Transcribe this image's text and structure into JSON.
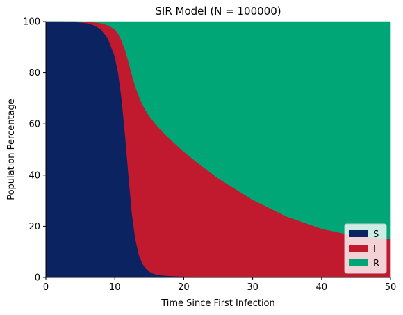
{
  "chart_data": {
    "type": "area",
    "stacked": true,
    "title": "SIR Model (N = 100000)",
    "xlabel": "Time Since First Infection",
    "ylabel": "Population Percentage",
    "xlim": [
      0,
      50
    ],
    "ylim": [
      0,
      100
    ],
    "xticks": [
      0,
      10,
      20,
      30,
      40,
      50
    ],
    "yticks": [
      0,
      20,
      40,
      60,
      80,
      100
    ],
    "grid": false,
    "legend_position": "bottom-right",
    "x": [
      0,
      2,
      4,
      6,
      7,
      8,
      9,
      10,
      10.5,
      11,
      11.5,
      12,
      12.5,
      13,
      13.5,
      14,
      14.5,
      15,
      15.5,
      16,
      17,
      18,
      19,
      20,
      22,
      25,
      30,
      35,
      40,
      45,
      50
    ],
    "series": [
      {
        "name": "S",
        "color": "#0b2361",
        "values": [
          100,
          99.98,
          99.9,
          99.4,
          98.6,
          97.0,
          93.5,
          86.5,
          80.0,
          70.0,
          56.0,
          40.0,
          25.0,
          15.0,
          9.0,
          5.5,
          3.5,
          2.3,
          1.6,
          1.2,
          0.8,
          0.6,
          0.5,
          0.4,
          0.35,
          0.3,
          0.28,
          0.27,
          0.26,
          0.25,
          0.25
        ]
      },
      {
        "name": "I",
        "color": "#c11a2f",
        "values": [
          0,
          0.02,
          0.08,
          0.5,
          1.1,
          2.4,
          5.1,
          10.5,
          15.2,
          22.6,
          32.9,
          44.2,
          54.1,
          59.5,
          61.8,
          62.2,
          61.7,
          60.8,
          59.8,
          58.5,
          56.0,
          53.5,
          51.2,
          48.8,
          44.5,
          38.5,
          30.1,
          23.5,
          18.8,
          15.9,
          14.7
        ]
      },
      {
        "name": "R",
        "color": "#00a675",
        "values": [
          0,
          0,
          0.02,
          0.1,
          0.3,
          0.6,
          1.4,
          3.0,
          4.8,
          7.4,
          11.1,
          15.8,
          20.9,
          25.5,
          29.2,
          32.3,
          34.8,
          36.9,
          38.6,
          40.3,
          43.2,
          45.9,
          48.3,
          50.8,
          55.15,
          61.2,
          69.62,
          76.23,
          80.94,
          83.85,
          85.05
        ]
      }
    ]
  }
}
